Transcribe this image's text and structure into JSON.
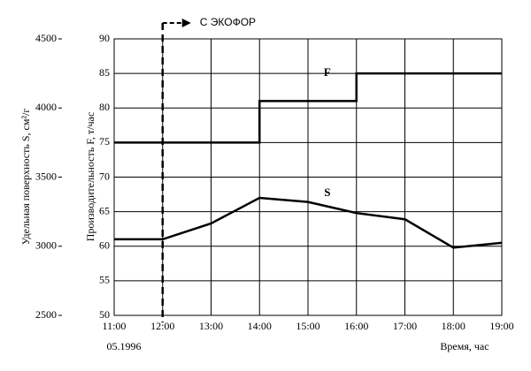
{
  "chart_data": {
    "type": "line",
    "categories": [
      "11:00",
      "12:00",
      "13:00",
      "14:00",
      "15:00",
      "16:00",
      "17:00",
      "18:00",
      "19:00"
    ],
    "series": [
      {
        "name": "F",
        "color": "#000000",
        "step": "post",
        "axis": "y",
        "values": [
          75,
          75,
          75,
          81,
          81,
          85,
          85,
          85,
          85
        ]
      },
      {
        "name": "S",
        "color": "#000000",
        "axis": "y2",
        "values": [
          3050,
          3050,
          3165,
          3350,
          3320,
          3240,
          3195,
          2990,
          3025
        ]
      }
    ],
    "ylim": [
      50,
      90
    ],
    "yticks": [
      50,
      55,
      60,
      65,
      70,
      75,
      80,
      85,
      90
    ],
    "y2lim": [
      2500,
      4500
    ],
    "y2ticks": [
      2500,
      3000,
      3500,
      4000,
      4500
    ],
    "ylabel": "Производительность F, т/час",
    "y2label": "Удельная поверхность S, см²/г",
    "xlabel": "Время, час",
    "note": "05.1996",
    "event": {
      "x": "12:00",
      "label": "С ЭКОФОР"
    },
    "grid": true
  }
}
